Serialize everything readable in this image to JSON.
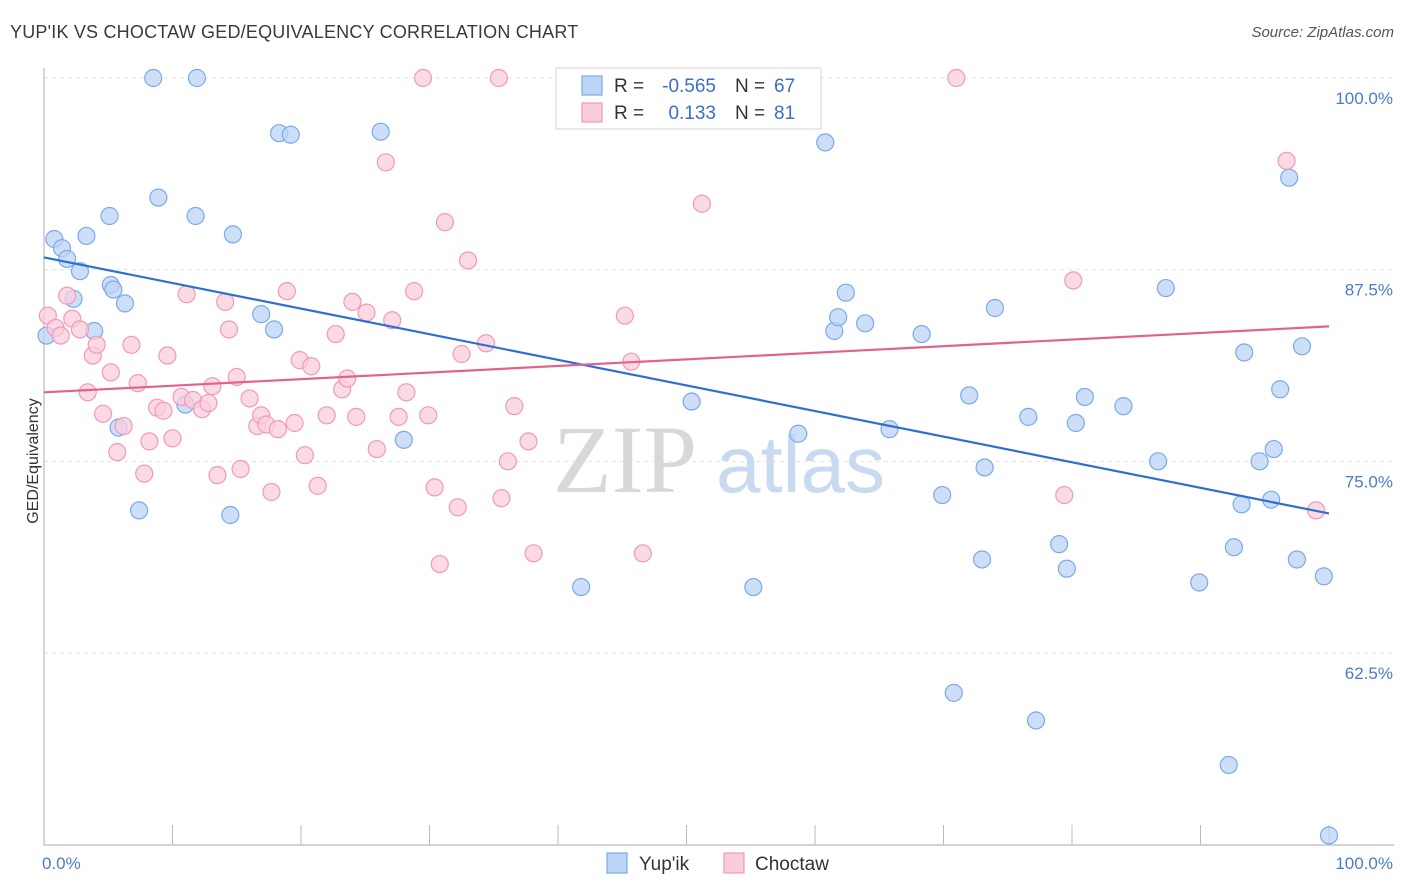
{
  "title": "YUP'IK VS CHOCTAW GED/EQUIVALENCY CORRELATION CHART",
  "source": "Source: ZipAtlas.com",
  "watermark": {
    "zip": "ZIP",
    "atlas": "atlas"
  },
  "chart_data": {
    "type": "scatter",
    "ylabel": "GED/Equivalency",
    "xlim": [
      0,
      100
    ],
    "ylim": [
      50.5,
      101
    ],
    "x_ticks": [
      {
        "value": 0,
        "label": "0.0%"
      },
      {
        "value": 100,
        "label": "100.0%"
      }
    ],
    "y_ticks": [
      {
        "value": 100,
        "label": "100.0%"
      },
      {
        "value": 87.5,
        "label": "87.5%"
      },
      {
        "value": 75,
        "label": "75.0%"
      },
      {
        "value": 62.5,
        "label": "62.5%"
      }
    ],
    "grid": "horizontal-dashed",
    "legend": {
      "placement": "top-center",
      "r_label": "R =",
      "n_label": "N =",
      "entries": [
        {
          "r": "-0.565",
          "n": "67"
        },
        {
          "r": "0.133",
          "n": "81"
        }
      ]
    },
    "series": [
      {
        "name": "Yup'ik",
        "color": "#7aaae8",
        "fill": "#bcd4f5",
        "line_color": "#2f6fce",
        "trend": {
          "x": [
            0,
            100
          ],
          "y": [
            88.3,
            71.6
          ]
        },
        "points": [
          {
            "x": 0.2,
            "y": 83.2
          },
          {
            "x": 0.8,
            "y": 89.5
          },
          {
            "x": 1.4,
            "y": 88.9
          },
          {
            "x": 1.8,
            "y": 88.2
          },
          {
            "x": 2.3,
            "y": 85.6
          },
          {
            "x": 2.8,
            "y": 87.4
          },
          {
            "x": 3.3,
            "y": 89.7
          },
          {
            "x": 3.9,
            "y": 83.5
          },
          {
            "x": 5.2,
            "y": 86.5
          },
          {
            "x": 5.1,
            "y": 91.0
          },
          {
            "x": 5.4,
            "y": 86.2
          },
          {
            "x": 5.8,
            "y": 77.2
          },
          {
            "x": 6.3,
            "y": 85.3
          },
          {
            "x": 7.4,
            "y": 71.8
          },
          {
            "x": 8.5,
            "y": 100.0
          },
          {
            "x": 8.9,
            "y": 92.2
          },
          {
            "x": 11.0,
            "y": 78.7
          },
          {
            "x": 11.8,
            "y": 91.0
          },
          {
            "x": 11.9,
            "y": 100.0
          },
          {
            "x": 14.5,
            "y": 71.5
          },
          {
            "x": 14.7,
            "y": 89.8
          },
          {
            "x": 16.9,
            "y": 84.6
          },
          {
            "x": 17.9,
            "y": 83.6
          },
          {
            "x": 18.3,
            "y": 96.4
          },
          {
            "x": 19.2,
            "y": 96.3
          },
          {
            "x": 26.2,
            "y": 96.5
          },
          {
            "x": 28.0,
            "y": 76.4
          },
          {
            "x": 41.8,
            "y": 66.8
          },
          {
            "x": 50.4,
            "y": 78.9
          },
          {
            "x": 55.2,
            "y": 66.8
          },
          {
            "x": 58.7,
            "y": 76.8
          },
          {
            "x": 60.8,
            "y": 95.8
          },
          {
            "x": 61.5,
            "y": 83.5
          },
          {
            "x": 61.8,
            "y": 84.4
          },
          {
            "x": 62.4,
            "y": 86.0
          },
          {
            "x": 63.9,
            "y": 84.0
          },
          {
            "x": 65.8,
            "y": 77.1
          },
          {
            "x": 68.3,
            "y": 83.3
          },
          {
            "x": 69.9,
            "y": 72.8
          },
          {
            "x": 70.8,
            "y": 59.9
          },
          {
            "x": 72.0,
            "y": 79.3
          },
          {
            "x": 73.0,
            "y": 68.6
          },
          {
            "x": 73.2,
            "y": 74.6
          },
          {
            "x": 74.0,
            "y": 85.0
          },
          {
            "x": 76.6,
            "y": 77.9
          },
          {
            "x": 77.2,
            "y": 58.1
          },
          {
            "x": 79.0,
            "y": 69.6
          },
          {
            "x": 79.6,
            "y": 68.0
          },
          {
            "x": 80.3,
            "y": 77.5
          },
          {
            "x": 81.0,
            "y": 79.2
          },
          {
            "x": 84.0,
            "y": 78.6
          },
          {
            "x": 86.7,
            "y": 75.0
          },
          {
            "x": 87.3,
            "y": 86.3
          },
          {
            "x": 89.9,
            "y": 67.1
          },
          {
            "x": 92.2,
            "y": 55.2
          },
          {
            "x": 92.6,
            "y": 69.4
          },
          {
            "x": 93.2,
            "y": 72.2
          },
          {
            "x": 93.4,
            "y": 82.1
          },
          {
            "x": 94.6,
            "y": 75.0
          },
          {
            "x": 95.5,
            "y": 72.5
          },
          {
            "x": 95.7,
            "y": 75.8
          },
          {
            "x": 96.2,
            "y": 79.7
          },
          {
            "x": 96.9,
            "y": 93.5
          },
          {
            "x": 97.5,
            "y": 68.6
          },
          {
            "x": 97.9,
            "y": 82.5
          },
          {
            "x": 99.6,
            "y": 67.5
          },
          {
            "x": 100.0,
            "y": 50.6
          }
        ]
      },
      {
        "name": "Choctaw",
        "color": "#ef9ab8",
        "fill": "#f9cddc",
        "line_color": "#e2628e",
        "trend": {
          "x": [
            0,
            100
          ],
          "y": [
            79.5,
            83.8
          ]
        },
        "points": [
          {
            "x": 0.3,
            "y": 84.5
          },
          {
            "x": 0.9,
            "y": 83.7
          },
          {
            "x": 1.3,
            "y": 83.2
          },
          {
            "x": 1.8,
            "y": 85.8
          },
          {
            "x": 2.2,
            "y": 84.3
          },
          {
            "x": 2.8,
            "y": 83.6
          },
          {
            "x": 3.4,
            "y": 79.5
          },
          {
            "x": 3.8,
            "y": 81.9
          },
          {
            "x": 4.1,
            "y": 82.6
          },
          {
            "x": 4.6,
            "y": 78.1
          },
          {
            "x": 5.2,
            "y": 80.8
          },
          {
            "x": 5.7,
            "y": 75.6
          },
          {
            "x": 6.2,
            "y": 77.3
          },
          {
            "x": 6.8,
            "y": 82.6
          },
          {
            "x": 7.3,
            "y": 80.1
          },
          {
            "x": 7.8,
            "y": 74.2
          },
          {
            "x": 8.2,
            "y": 76.3
          },
          {
            "x": 8.8,
            "y": 78.5
          },
          {
            "x": 9.3,
            "y": 78.3
          },
          {
            "x": 9.6,
            "y": 81.9
          },
          {
            "x": 10.0,
            "y": 76.5
          },
          {
            "x": 10.7,
            "y": 79.2
          },
          {
            "x": 11.1,
            "y": 85.9
          },
          {
            "x": 11.6,
            "y": 79.0
          },
          {
            "x": 12.3,
            "y": 78.4
          },
          {
            "x": 12.8,
            "y": 78.8
          },
          {
            "x": 13.1,
            "y": 79.9
          },
          {
            "x": 13.5,
            "y": 74.1
          },
          {
            "x": 14.1,
            "y": 85.4
          },
          {
            "x": 14.4,
            "y": 83.6
          },
          {
            "x": 15.0,
            "y": 80.5
          },
          {
            "x": 15.3,
            "y": 74.5
          },
          {
            "x": 16.0,
            "y": 79.1
          },
          {
            "x": 16.6,
            "y": 77.3
          },
          {
            "x": 16.9,
            "y": 78.0
          },
          {
            "x": 17.3,
            "y": 77.4
          },
          {
            "x": 17.7,
            "y": 73.0
          },
          {
            "x": 18.2,
            "y": 77.1
          },
          {
            "x": 18.9,
            "y": 86.1
          },
          {
            "x": 19.5,
            "y": 77.5
          },
          {
            "x": 19.9,
            "y": 81.6
          },
          {
            "x": 20.3,
            "y": 75.4
          },
          {
            "x": 20.8,
            "y": 81.2
          },
          {
            "x": 21.3,
            "y": 73.4
          },
          {
            "x": 22.0,
            "y": 78.0
          },
          {
            "x": 22.7,
            "y": 83.3
          },
          {
            "x": 23.2,
            "y": 79.7
          },
          {
            "x": 23.6,
            "y": 80.4
          },
          {
            "x": 24.0,
            "y": 85.4
          },
          {
            "x": 24.3,
            "y": 77.9
          },
          {
            "x": 25.1,
            "y": 84.7
          },
          {
            "x": 25.9,
            "y": 75.8
          },
          {
            "x": 26.6,
            "y": 94.5
          },
          {
            "x": 27.1,
            "y": 84.2
          },
          {
            "x": 27.6,
            "y": 77.9
          },
          {
            "x": 28.2,
            "y": 79.5
          },
          {
            "x": 28.8,
            "y": 86.1
          },
          {
            "x": 29.5,
            "y": 100.0
          },
          {
            "x": 29.9,
            "y": 78.0
          },
          {
            "x": 30.4,
            "y": 73.3
          },
          {
            "x": 30.8,
            "y": 68.3
          },
          {
            "x": 31.2,
            "y": 90.6
          },
          {
            "x": 32.2,
            "y": 72.0
          },
          {
            "x": 32.5,
            "y": 82.0
          },
          {
            "x": 33.0,
            "y": 88.1
          },
          {
            "x": 34.4,
            "y": 82.7
          },
          {
            "x": 35.4,
            "y": 100.0
          },
          {
            "x": 35.6,
            "y": 72.6
          },
          {
            "x": 36.1,
            "y": 75.0
          },
          {
            "x": 36.6,
            "y": 78.6
          },
          {
            "x": 37.7,
            "y": 76.3
          },
          {
            "x": 38.1,
            "y": 69.0
          },
          {
            "x": 45.2,
            "y": 84.5
          },
          {
            "x": 45.7,
            "y": 81.5
          },
          {
            "x": 46.6,
            "y": 69.0
          },
          {
            "x": 51.2,
            "y": 91.8
          },
          {
            "x": 71.0,
            "y": 100.0
          },
          {
            "x": 79.4,
            "y": 72.8
          },
          {
            "x": 80.1,
            "y": 86.8
          },
          {
            "x": 96.7,
            "y": 94.6
          },
          {
            "x": 99.0,
            "y": 71.8
          }
        ]
      }
    ]
  }
}
